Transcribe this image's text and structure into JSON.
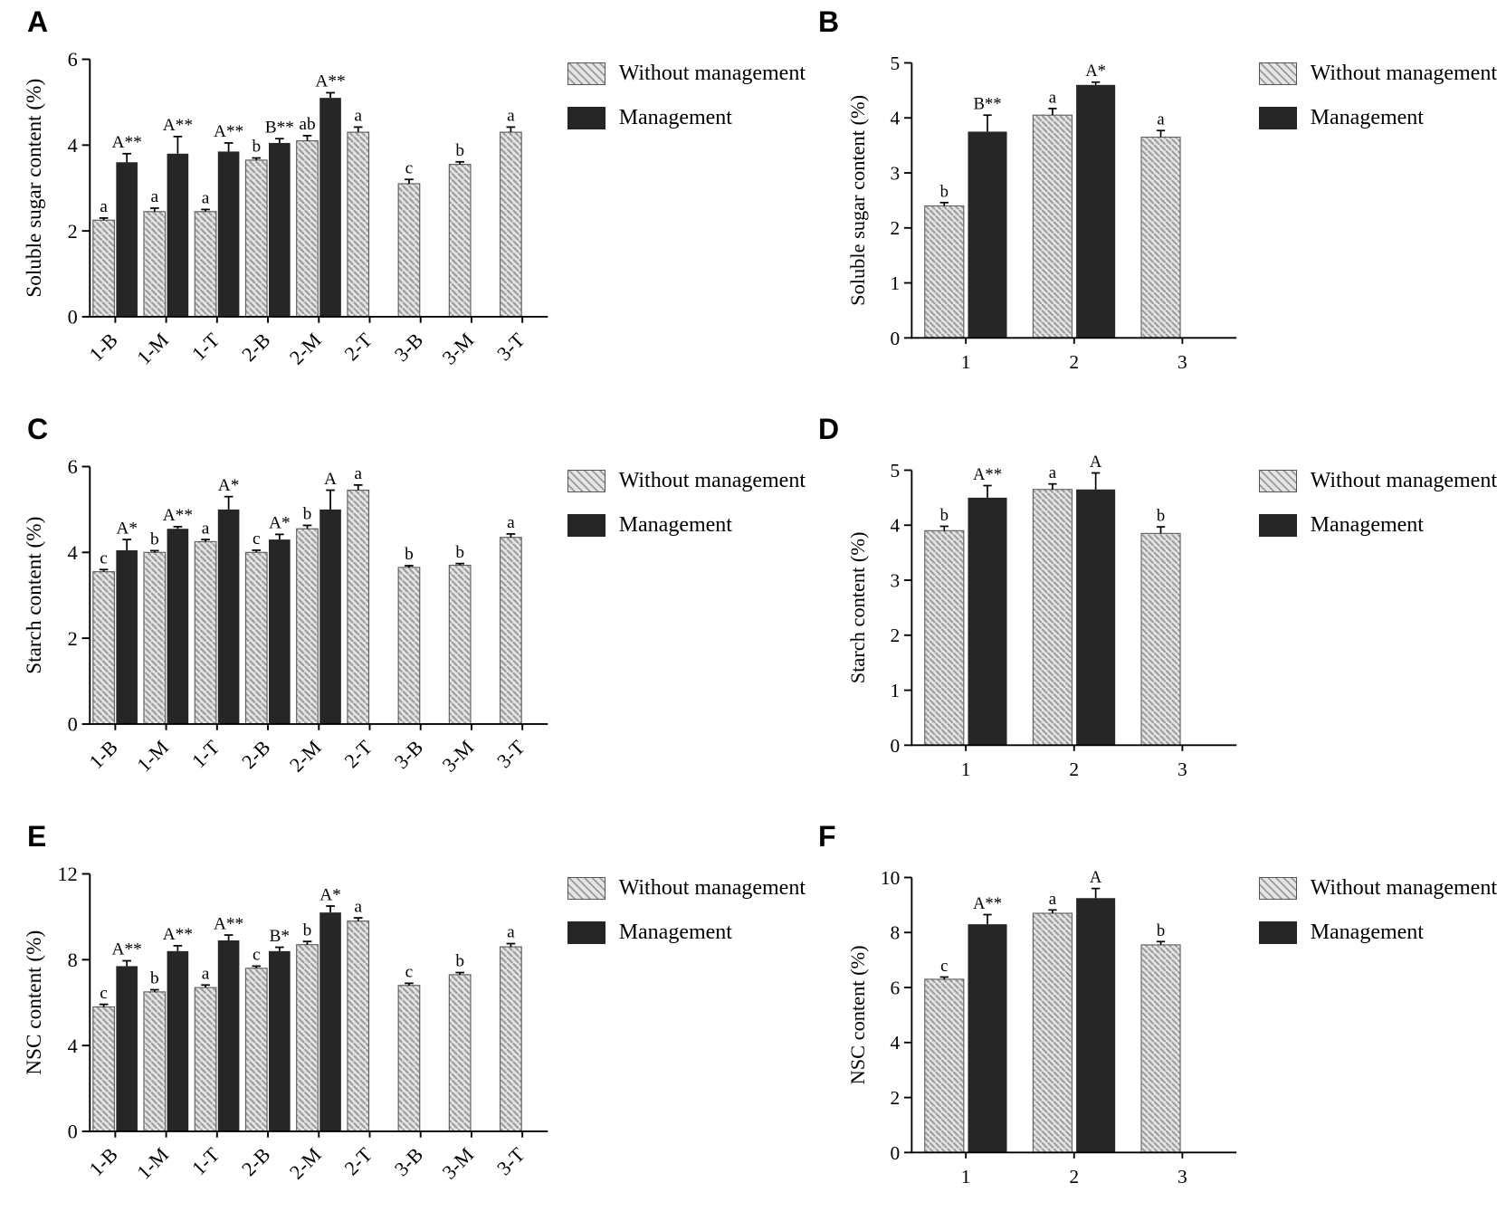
{
  "legend": {
    "without": "Without management",
    "management": "Management"
  },
  "colors": {
    "without_fill": "#e4e4e4",
    "without_hatch": "#9a9a9a",
    "without_outline": "#606060",
    "management_fill": "#262626",
    "axis": "#000000"
  },
  "chart_data": [
    {
      "id": "A",
      "panel_label": "A",
      "type": "bar",
      "ylabel": "Soluble sugar content (%)",
      "ylim": [
        0,
        6
      ],
      "yticks": [
        0,
        2,
        4,
        6
      ],
      "legend_position": "right",
      "grid": false,
      "categories": [
        "1-B",
        "1-M",
        "1-T",
        "2-B",
        "2-M",
        "2-T",
        "3-B",
        "3-M",
        "3-T"
      ],
      "series": [
        {
          "name": "Without management",
          "style": "hatched",
          "values": [
            2.25,
            2.45,
            2.45,
            3.65,
            4.1,
            4.3,
            3.1,
            3.55,
            4.3
          ],
          "errors": [
            0.05,
            0.08,
            0.05,
            0.05,
            0.12,
            0.12,
            0.1,
            0.06,
            0.12
          ],
          "labels": [
            "a",
            "a",
            "a",
            "b",
            "ab",
            "a",
            "c",
            "b",
            "a"
          ]
        },
        {
          "name": "Management",
          "style": "solid",
          "values": [
            3.6,
            3.8,
            3.85,
            4.05,
            5.1,
            null,
            null,
            null,
            null
          ],
          "errors": [
            0.2,
            0.4,
            0.2,
            0.1,
            0.12,
            null,
            null,
            null,
            null
          ],
          "labels": [
            "A**",
            "A**",
            "A**",
            "B**",
            "A**",
            "",
            "",
            "",
            ""
          ]
        }
      ]
    },
    {
      "id": "B",
      "panel_label": "B",
      "type": "bar",
      "ylabel": "Soluble sugar content (%)",
      "ylim": [
        0,
        5
      ],
      "yticks": [
        0,
        1,
        2,
        3,
        4,
        5
      ],
      "legend_position": "right",
      "grid": false,
      "categories": [
        "1",
        "2",
        "3"
      ],
      "series": [
        {
          "name": "Without management",
          "style": "hatched",
          "values": [
            2.4,
            4.05,
            3.65
          ],
          "errors": [
            0.06,
            0.12,
            0.12
          ],
          "labels": [
            "b",
            "a",
            "a"
          ]
        },
        {
          "name": "Management",
          "style": "solid",
          "values": [
            3.75,
            4.6,
            null
          ],
          "errors": [
            0.3,
            0.05,
            null
          ],
          "labels": [
            "B**",
            "A*",
            ""
          ]
        }
      ]
    },
    {
      "id": "C",
      "panel_label": "C",
      "type": "bar",
      "ylabel": "Starch content (%)",
      "ylim": [
        0,
        6
      ],
      "yticks": [
        0,
        2,
        4,
        6
      ],
      "legend_position": "right",
      "grid": false,
      "categories": [
        "1-B",
        "1-M",
        "1-T",
        "2-B",
        "2-M",
        "2-T",
        "3-B",
        "3-M",
        "3-T"
      ],
      "series": [
        {
          "name": "Without management",
          "style": "hatched",
          "values": [
            3.55,
            4.0,
            4.25,
            4.0,
            4.55,
            5.45,
            3.65,
            3.7,
            4.35
          ],
          "errors": [
            0.05,
            0.04,
            0.05,
            0.05,
            0.08,
            0.12,
            0.04,
            0.04,
            0.08
          ],
          "labels": [
            "c",
            "b",
            "a",
            "c",
            "b",
            "a",
            "b",
            "b",
            "a"
          ]
        },
        {
          "name": "Management",
          "style": "solid",
          "values": [
            4.05,
            4.55,
            5.0,
            4.3,
            5.0,
            null,
            null,
            null,
            null
          ],
          "errors": [
            0.25,
            0.05,
            0.3,
            0.12,
            0.45,
            null,
            null,
            null,
            null
          ],
          "labels": [
            "A*",
            "A**",
            "A*",
            "A*",
            "A",
            "",
            "",
            "",
            ""
          ]
        }
      ]
    },
    {
      "id": "D",
      "panel_label": "D",
      "type": "bar",
      "ylabel": "Starch content (%)",
      "ylim": [
        0,
        5
      ],
      "yticks": [
        0,
        1,
        2,
        3,
        4,
        5
      ],
      "legend_position": "right",
      "grid": false,
      "categories": [
        "1",
        "2",
        "3"
      ],
      "series": [
        {
          "name": "Without management",
          "style": "hatched",
          "values": [
            3.9,
            4.65,
            3.85
          ],
          "errors": [
            0.08,
            0.1,
            0.12
          ],
          "labels": [
            "b",
            "a",
            "b"
          ]
        },
        {
          "name": "Management",
          "style": "solid",
          "values": [
            4.5,
            4.65,
            null
          ],
          "errors": [
            0.22,
            0.3,
            null
          ],
          "labels": [
            "A**",
            "A",
            ""
          ]
        }
      ]
    },
    {
      "id": "E",
      "panel_label": "E",
      "type": "bar",
      "ylabel": "NSC content (%)",
      "ylim": [
        0,
        12
      ],
      "yticks": [
        0,
        4,
        8,
        12
      ],
      "legend_position": "right",
      "grid": false,
      "categories": [
        "1-B",
        "1-M",
        "1-T",
        "2-B",
        "2-M",
        "2-T",
        "3-B",
        "3-M",
        "3-T"
      ],
      "series": [
        {
          "name": "Without management",
          "style": "hatched",
          "values": [
            5.8,
            6.5,
            6.7,
            7.6,
            8.7,
            9.8,
            6.8,
            7.3,
            8.6
          ],
          "errors": [
            0.12,
            0.1,
            0.12,
            0.1,
            0.15,
            0.15,
            0.1,
            0.1,
            0.15
          ],
          "labels": [
            "c",
            "b",
            "a",
            "c",
            "b",
            "a",
            "c",
            "b",
            "a"
          ]
        },
        {
          "name": "Management",
          "style": "solid",
          "values": [
            7.7,
            8.4,
            8.9,
            8.4,
            10.2,
            null,
            null,
            null,
            null
          ],
          "errors": [
            0.25,
            0.25,
            0.25,
            0.18,
            0.3,
            null,
            null,
            null,
            null
          ],
          "labels": [
            "A**",
            "A**",
            "A**",
            "B*",
            "A*",
            "",
            "",
            "",
            ""
          ]
        }
      ]
    },
    {
      "id": "F",
      "panel_label": "F",
      "type": "bar",
      "ylabel": "NSC content (%)",
      "ylim": [
        0,
        10
      ],
      "yticks": [
        0,
        2,
        4,
        6,
        8,
        10
      ],
      "legend_position": "right",
      "grid": false,
      "categories": [
        "1",
        "2",
        "3"
      ],
      "series": [
        {
          "name": "Without management",
          "style": "hatched",
          "values": [
            6.3,
            8.7,
            7.55
          ],
          "errors": [
            0.08,
            0.12,
            0.12
          ],
          "labels": [
            "c",
            "a",
            "b"
          ]
        },
        {
          "name": "Management",
          "style": "solid",
          "values": [
            8.3,
            9.25,
            null
          ],
          "errors": [
            0.35,
            0.35,
            null
          ],
          "labels": [
            "A**",
            "A",
            ""
          ]
        }
      ]
    }
  ]
}
